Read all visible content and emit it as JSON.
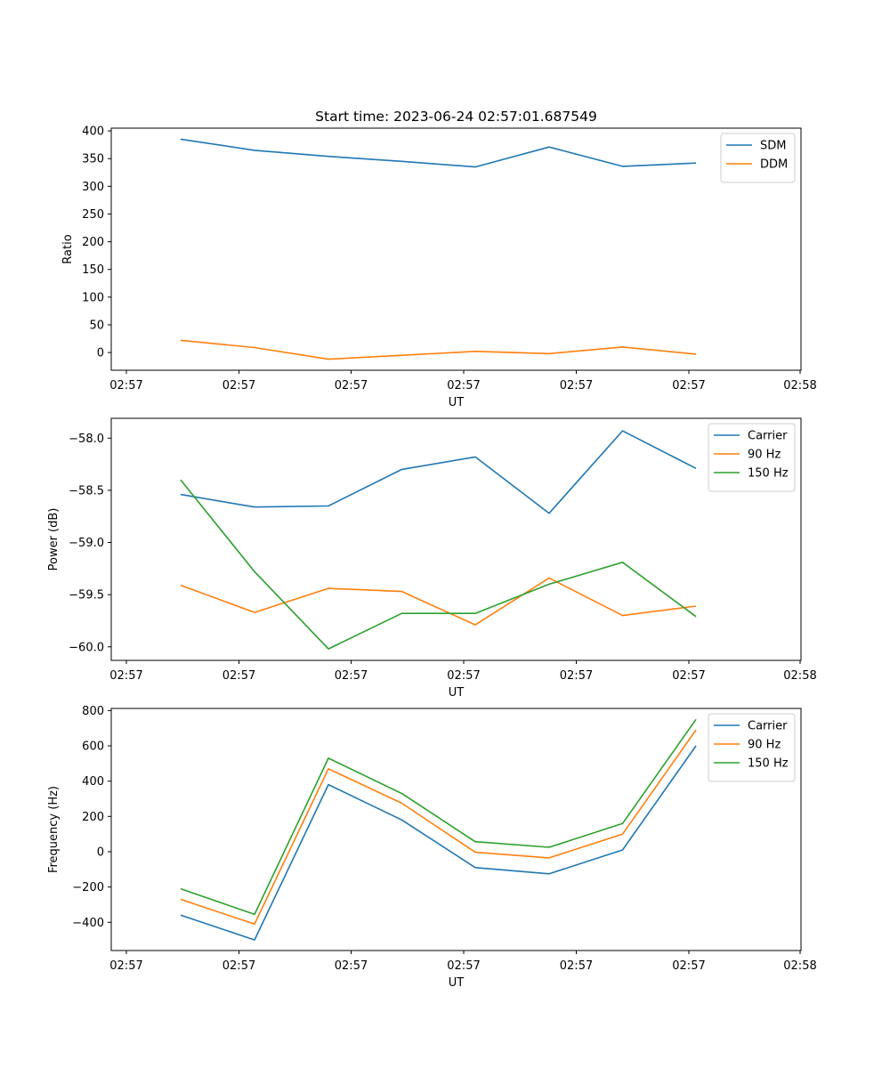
{
  "figure": {
    "title": "Start time: 2023-06-24 02:57:01.687549"
  },
  "colors": {
    "blue": "#1f77b4",
    "orange": "#ff7f0e",
    "green": "#2ca02c"
  },
  "chart_data": [
    {
      "type": "line",
      "title": "Start time: 2023-06-24 02:57:01.687549",
      "xlabel": "UT",
      "ylabel": "Ratio",
      "x_tick_labels": [
        "02:57",
        "02:57",
        "02:57",
        "02:57",
        "02:57",
        "02:57",
        "02:58"
      ],
      "y_ticks": [
        0,
        50,
        100,
        150,
        200,
        250,
        300,
        350,
        400
      ],
      "ylim": [
        -32,
        405
      ],
      "legend": "top-right",
      "series": [
        {
          "name": "SDM",
          "color": "blue",
          "values": [
            385,
            365,
            354,
            345,
            335,
            371,
            336,
            342
          ]
        },
        {
          "name": "DDM",
          "color": "orange",
          "values": [
            22,
            9,
            -12,
            -5,
            2,
            -2,
            10,
            -3
          ]
        }
      ]
    },
    {
      "type": "line",
      "title": "",
      "xlabel": "UT",
      "ylabel": "Power (dB)",
      "x_tick_labels": [
        "02:57",
        "02:57",
        "02:57",
        "02:57",
        "02:57",
        "02:57",
        "02:58"
      ],
      "y_ticks": [
        -60.0,
        -59.5,
        -59.0,
        -58.5,
        -58.0
      ],
      "y_tick_labels": [
        "−60.0",
        "−59.5",
        "−59.0",
        "−58.5",
        "−58.0"
      ],
      "ylim": [
        -60.13,
        -57.81
      ],
      "legend": "top-right",
      "series": [
        {
          "name": "Carrier",
          "color": "blue",
          "values": [
            -58.54,
            -58.66,
            -58.65,
            -58.3,
            -58.18,
            -58.72,
            -57.93,
            -58.29
          ]
        },
        {
          "name": "90 Hz",
          "color": "orange",
          "values": [
            -59.41,
            -59.67,
            -59.44,
            -59.47,
            -59.79,
            -59.34,
            -59.7,
            -59.61
          ]
        },
        {
          "name": "150 Hz",
          "color": "green",
          "values": [
            -58.4,
            -59.28,
            -60.02,
            -59.68,
            -59.68,
            -59.4,
            -59.19,
            -59.71
          ]
        }
      ]
    },
    {
      "type": "line",
      "title": "",
      "xlabel": "UT",
      "ylabel": "Frequency (Hz)",
      "x_tick_labels": [
        "02:57",
        "02:57",
        "02:57",
        "02:57",
        "02:57",
        "02:57",
        "02:58"
      ],
      "y_ticks": [
        -400,
        -200,
        0,
        200,
        400,
        600,
        800
      ],
      "y_tick_labels": [
        "−400",
        "−200",
        "0",
        "200",
        "400",
        "600",
        "800"
      ],
      "ylim": [
        -560,
        812
      ],
      "legend": "top-right",
      "series": [
        {
          "name": "Carrier",
          "color": "blue",
          "values": [
            -360,
            -500,
            380,
            180,
            -90,
            -125,
            10,
            600
          ]
        },
        {
          "name": "90 Hz",
          "color": "orange",
          "values": [
            -270,
            -410,
            470,
            275,
            -3,
            -35,
            100,
            690
          ]
        },
        {
          "name": "150 Hz",
          "color": "green",
          "values": [
            -210,
            -355,
            530,
            330,
            57,
            25,
            160,
            750
          ]
        }
      ]
    }
  ]
}
